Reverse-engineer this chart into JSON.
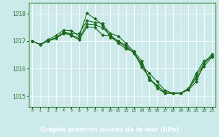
{
  "xlabel": "Graphe pression niveau de la mer (hPa)",
  "xlim": [
    -0.5,
    23.5
  ],
  "ylim": [
    1014.6,
    1018.4
  ],
  "yticks": [
    1015,
    1016,
    1017,
    1018
  ],
  "xticks": [
    0,
    1,
    2,
    3,
    4,
    5,
    6,
    7,
    8,
    9,
    10,
    11,
    12,
    13,
    14,
    15,
    16,
    17,
    18,
    19,
    20,
    21,
    22,
    23
  ],
  "bg_color": "#cceaea",
  "line_color": "#1a6b1a",
  "grid_color": "#ffffff",
  "label_bar_color": "#2d6e2d",
  "label_text_color": "#ffffff",
  "series": [
    [
      1017.0,
      1016.88,
      1017.0,
      1017.12,
      1017.32,
      1017.28,
      1017.28,
      1017.75,
      1017.68,
      1017.65,
      1017.12,
      1017.0,
      1016.85,
      1016.55,
      1016.12,
      1015.82,
      1015.52,
      1015.2,
      1015.1,
      1015.1,
      1015.25,
      1015.82,
      1016.28,
      1016.42
    ],
    [
      1017.0,
      1016.88,
      1017.05,
      1017.2,
      1017.4,
      1017.38,
      1017.18,
      1018.02,
      1017.82,
      1017.58,
      1017.28,
      1017.18,
      1016.92,
      1016.62,
      1016.05,
      1015.68,
      1015.28,
      1015.1,
      1015.1,
      1015.1,
      1015.28,
      1015.62,
      1016.08,
      1016.42
    ],
    [
      1017.0,
      1016.88,
      1017.02,
      1017.12,
      1017.32,
      1017.2,
      1017.05,
      1017.52,
      1017.5,
      1017.22,
      1017.2,
      1016.92,
      1016.72,
      1016.62,
      1016.28,
      1015.58,
      1015.38,
      1015.1,
      1015.1,
      1015.1,
      1015.22,
      1015.52,
      1016.18,
      1016.52
    ],
    [
      1017.0,
      1016.88,
      1017.0,
      1017.1,
      1017.28,
      1017.22,
      1017.1,
      1017.62,
      1017.6,
      1017.48,
      1017.22,
      1017.0,
      1016.78,
      1016.58,
      1016.18,
      1015.62,
      1015.38,
      1015.12,
      1015.1,
      1015.1,
      1015.22,
      1015.72,
      1016.18,
      1016.48
    ]
  ]
}
